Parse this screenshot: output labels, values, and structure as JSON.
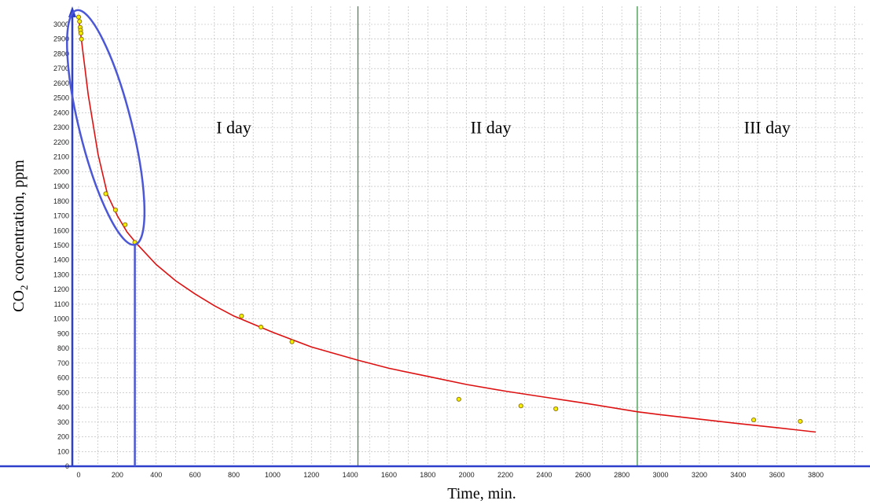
{
  "chart_data": {
    "type": "scatter",
    "xlabel": "Time, min.",
    "ylabel": {
      "prefix": "CO",
      "subscript": "2",
      "suffix": " concentration, ppm"
    },
    "xlim": [
      -50,
      4000
    ],
    "ylim": [
      0,
      3100
    ],
    "x_ticks": [
      {
        "value": 0,
        "label": "0"
      },
      {
        "value": 200,
        "label": "200"
      },
      {
        "value": 400,
        "label": "400"
      },
      {
        "value": 600,
        "label": "600"
      },
      {
        "value": 800,
        "label": "800"
      },
      {
        "value": 1000,
        "label": "1000"
      },
      {
        "value": 1200,
        "label": "1200"
      },
      {
        "value": 1400,
        "label": "1400"
      },
      {
        "value": 1600,
        "label": "1600"
      },
      {
        "value": 1800,
        "label": "1800"
      },
      {
        "value": 2000,
        "label": "2000"
      },
      {
        "value": 2200,
        "label": "2200"
      },
      {
        "value": 2400,
        "label": "2400"
      },
      {
        "value": 2600,
        "label": "2600"
      },
      {
        "value": 2800,
        "label": "2800"
      },
      {
        "value": 3000,
        "label": "3000"
      },
      {
        "value": 3200,
        "label": "3200"
      },
      {
        "value": 3400,
        "label": "3400"
      },
      {
        "value": 3600,
        "label": "3600"
      },
      {
        "value": 3800,
        "label": "3800"
      }
    ],
    "y_ticks": [
      {
        "value": 0,
        "label": "0"
      },
      {
        "value": 100,
        "label": "100"
      },
      {
        "value": 200,
        "label": "200"
      },
      {
        "value": 300,
        "label": "300"
      },
      {
        "value": 400,
        "label": "400"
      },
      {
        "value": 500,
        "label": "500"
      },
      {
        "value": 600,
        "label": "600"
      },
      {
        "value": 700,
        "label": "700"
      },
      {
        "value": 800,
        "label": "800"
      },
      {
        "value": 900,
        "label": "900"
      },
      {
        "value": 1000,
        "label": "1000"
      },
      {
        "value": 1100,
        "label": "1100"
      },
      {
        "value": 1200,
        "label": "1200"
      },
      {
        "value": 1300,
        "label": "1300"
      },
      {
        "value": 1400,
        "label": "1400"
      },
      {
        "value": 1500,
        "label": "1500"
      },
      {
        "value": 1600,
        "label": "1600"
      },
      {
        "value": 1700,
        "label": "1700"
      },
      {
        "value": 1800,
        "label": "1800"
      },
      {
        "value": 1900,
        "label": "1900"
      },
      {
        "value": 2000,
        "label": "2000"
      },
      {
        "value": 2100,
        "label": "2100"
      },
      {
        "value": 2200,
        "label": "2200"
      },
      {
        "value": 2300,
        "label": "2300"
      },
      {
        "value": 2400,
        "label": "2400"
      },
      {
        "value": 2500,
        "label": "2500"
      },
      {
        "value": 2600,
        "label": "2600"
      },
      {
        "value": 2700,
        "label": "2700"
      },
      {
        "value": 2800,
        "label": "2800"
      },
      {
        "value": 2900,
        "label": "2900"
      },
      {
        "value": 3000,
        "label": "3000"
      }
    ],
    "grid": true,
    "day_boundaries": [
      1440,
      2880
    ],
    "day_labels": [
      {
        "text": "I day",
        "x": 800,
        "y": 2260
      },
      {
        "text": "II day",
        "x": 2125,
        "y": 2260
      },
      {
        "text": "III day",
        "x": 3550,
        "y": 2260
      }
    ],
    "points": [
      {
        "x": 0,
        "y": 3050
      },
      {
        "x": 5,
        "y": 3020
      },
      {
        "x": 8,
        "y": 2980
      },
      {
        "x": 10,
        "y": 2960
      },
      {
        "x": 12,
        "y": 2940
      },
      {
        "x": 15,
        "y": 2900
      },
      {
        "x": 140,
        "y": 1850
      },
      {
        "x": 190,
        "y": 1740
      },
      {
        "x": 240,
        "y": 1640
      },
      {
        "x": 290,
        "y": 1520
      },
      {
        "x": 840,
        "y": 1020
      },
      {
        "x": 940,
        "y": 945
      },
      {
        "x": 1100,
        "y": 845
      },
      {
        "x": 1960,
        "y": 455
      },
      {
        "x": 2280,
        "y": 410
      },
      {
        "x": 2460,
        "y": 390
      },
      {
        "x": 3480,
        "y": 315
      },
      {
        "x": 3720,
        "y": 305
      }
    ],
    "fit_curve": [
      {
        "x": 0,
        "y": 3050
      },
      {
        "x": 50,
        "y": 2520
      },
      {
        "x": 100,
        "y": 2120
      },
      {
        "x": 150,
        "y": 1840
      },
      {
        "x": 200,
        "y": 1700
      },
      {
        "x": 250,
        "y": 1590
      },
      {
        "x": 300,
        "y": 1510
      },
      {
        "x": 400,
        "y": 1370
      },
      {
        "x": 500,
        "y": 1260
      },
      {
        "x": 600,
        "y": 1170
      },
      {
        "x": 700,
        "y": 1090
      },
      {
        "x": 800,
        "y": 1020
      },
      {
        "x": 1000,
        "y": 910
      },
      {
        "x": 1200,
        "y": 810
      },
      {
        "x": 1440,
        "y": 720
      },
      {
        "x": 1600,
        "y": 665
      },
      {
        "x": 1800,
        "y": 610
      },
      {
        "x": 2000,
        "y": 555
      },
      {
        "x": 2200,
        "y": 510
      },
      {
        "x": 2400,
        "y": 470
      },
      {
        "x": 2600,
        "y": 430
      },
      {
        "x": 2880,
        "y": 370
      },
      {
        "x": 3000,
        "y": 350
      },
      {
        "x": 3200,
        "y": 320
      },
      {
        "x": 3400,
        "y": 290
      },
      {
        "x": 3600,
        "y": 262
      },
      {
        "x": 3800,
        "y": 232
      }
    ],
    "highlight": {
      "marker_x": 290,
      "ellipse_center": {
        "x": 140,
        "y": 2300
      },
      "ellipse_semi_axes": {
        "x": 135,
        "y": 820
      },
      "ellipse_tilt_deg": -14
    },
    "colors": {
      "points": "#f5f000",
      "point_outline": "#8a6d00",
      "fit_curve": "#dd1111",
      "axes": "#2e3fc9",
      "grid": "#b5b5b5",
      "day_boundary": "#2e8b3a",
      "highlight": "#4b57d6"
    }
  }
}
